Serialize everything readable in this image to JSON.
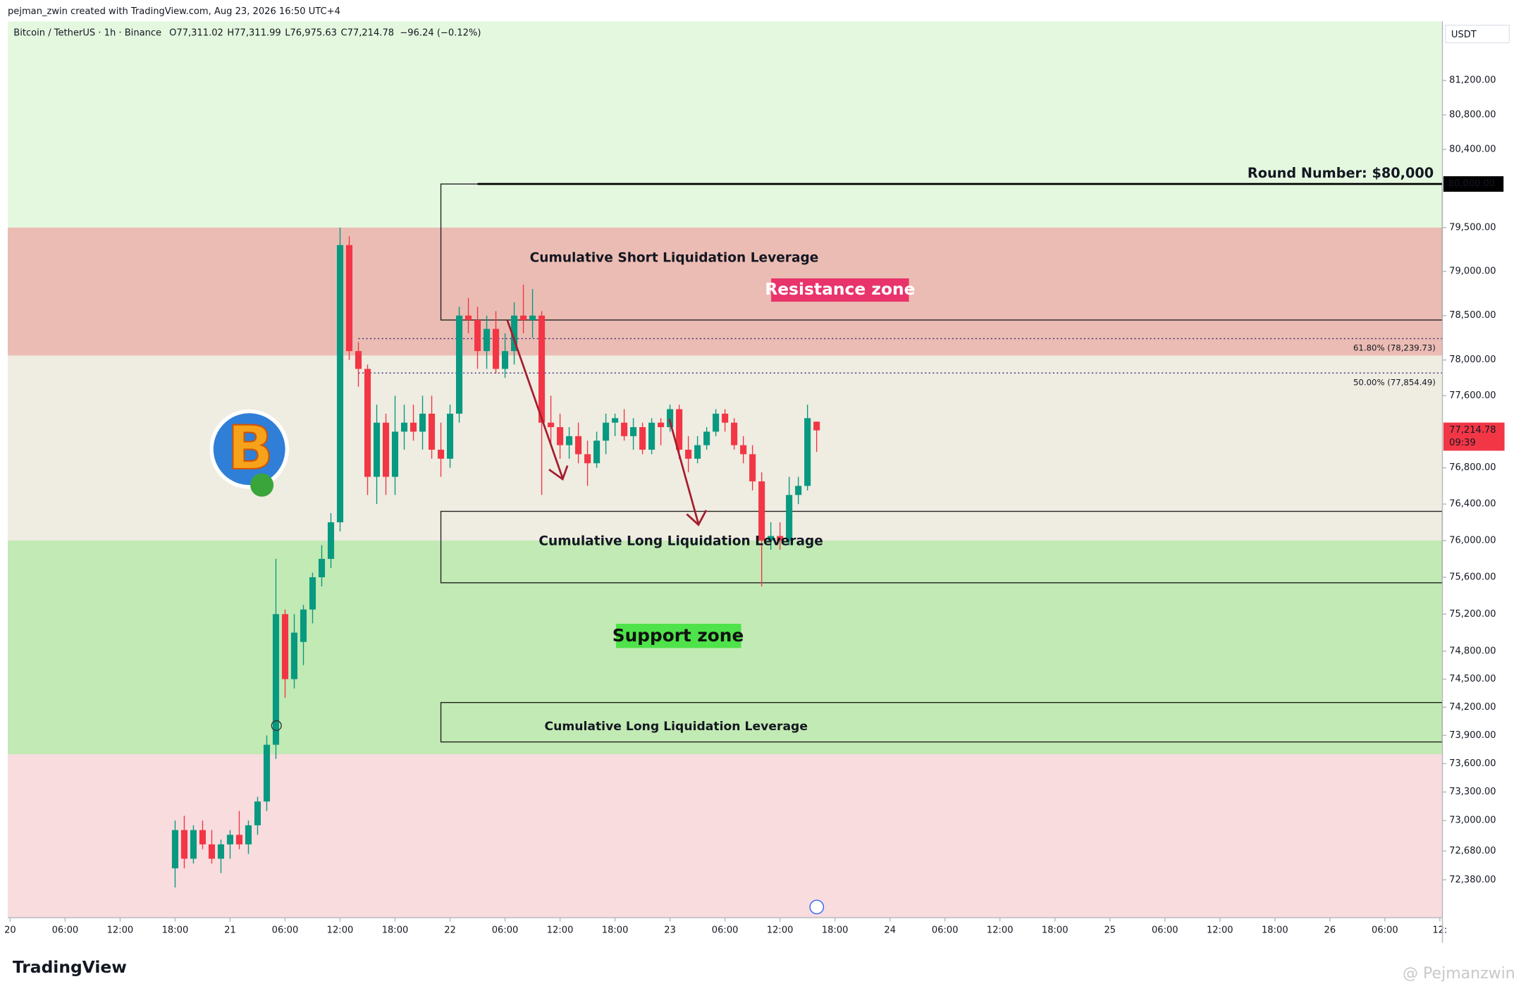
{
  "header": {
    "credit": "pejman_zwin created with TradingView.com, Aug 23, 2026 16:50 UTC+4",
    "symbol": "Bitcoin / TetherUS · 1h · Binance",
    "ohlc": [
      {
        "key": "O",
        "value": "77,311.02"
      },
      {
        "key": "H",
        "value": "77,311.99"
      },
      {
        "key": "L",
        "value": "76,975.63"
      },
      {
        "key": "C",
        "value": "77,214.78"
      }
    ],
    "change": "−96.24 (−0.12%)"
  },
  "chart_data": {
    "type": "candlestick",
    "currency": "USDT",
    "log_scale": true,
    "grid": false,
    "ylim": [
      71987,
      81894
    ],
    "xlim": [
      -0.26,
      156.28
    ],
    "yticks": [
      {
        "value": 81200,
        "label": "81,200.00"
      },
      {
        "value": 80800,
        "label": "80,800.00"
      },
      {
        "value": 80400,
        "label": "80,400.00"
      },
      {
        "value": 79500,
        "label": "79,500.00"
      },
      {
        "value": 79000,
        "label": "79,000.00"
      },
      {
        "value": 78500,
        "label": "78,500.00"
      },
      {
        "value": 78000,
        "label": "78,000.00"
      },
      {
        "value": 77600,
        "label": "77,600.00"
      },
      {
        "value": 76800,
        "label": "76,800.00"
      },
      {
        "value": 76400,
        "label": "76,400.00"
      },
      {
        "value": 76000,
        "label": "76,000.00"
      },
      {
        "value": 75600,
        "label": "75,600.00"
      },
      {
        "value": 75200,
        "label": "75,200.00"
      },
      {
        "value": 74800,
        "label": "74,800.00"
      },
      {
        "value": 74500,
        "label": "74,500.00"
      },
      {
        "value": 74200,
        "label": "74,200.00"
      },
      {
        "value": 73900,
        "label": "73,900.00"
      },
      {
        "value": 73600,
        "label": "73,600.00"
      },
      {
        "value": 73300,
        "label": "73,300.00"
      },
      {
        "value": 73000,
        "label": "73,000.00"
      },
      {
        "value": 72680,
        "label": "72,680.00"
      },
      {
        "value": 72380,
        "label": "72,380.00"
      }
    ],
    "xticks": [
      {
        "value": 0,
        "label": "20"
      },
      {
        "value": 6,
        "label": "06:00"
      },
      {
        "value": 12,
        "label": "12:00"
      },
      {
        "value": 18,
        "label": "18:00"
      },
      {
        "value": 24,
        "label": "21"
      },
      {
        "value": 30,
        "label": "06:00"
      },
      {
        "value": 36,
        "label": "12:00"
      },
      {
        "value": 42,
        "label": "18:00"
      },
      {
        "value": 48,
        "label": "22"
      },
      {
        "value": 54,
        "label": "06:00"
      },
      {
        "value": 60,
        "label": "12:00"
      },
      {
        "value": 66,
        "label": "18:00"
      },
      {
        "value": 72,
        "label": "23"
      },
      {
        "value": 78,
        "label": "06:00"
      },
      {
        "value": 84,
        "label": "12:00"
      },
      {
        "value": 90,
        "label": "18:00"
      },
      {
        "value": 96,
        "label": "24"
      },
      {
        "value": 102,
        "label": "06:00"
      },
      {
        "value": 108,
        "label": "12:00"
      },
      {
        "value": 114,
        "label": "18:00"
      },
      {
        "value": 120,
        "label": "25"
      },
      {
        "value": 126,
        "label": "06:00"
      },
      {
        "value": 132,
        "label": "12:00"
      },
      {
        "value": 138,
        "label": "18:00"
      },
      {
        "value": 144,
        "label": "26"
      },
      {
        "value": 150,
        "label": "06:00"
      },
      {
        "value": 156,
        "label": "12:"
      }
    ],
    "up_color": "#089981",
    "down_color": "#f23645",
    "x": [
      18,
      19,
      20,
      21,
      22,
      23,
      24,
      25,
      26,
      27,
      28,
      29,
      30,
      31,
      32,
      33,
      34,
      35,
      36,
      37,
      38,
      39,
      40,
      41,
      42,
      43,
      44,
      45,
      46,
      47,
      48,
      49,
      50,
      51,
      52,
      53,
      54,
      55,
      56,
      57,
      58,
      59,
      60,
      61,
      62,
      63,
      64,
      65,
      66,
      67,
      68,
      69,
      70,
      71,
      72,
      73,
      74,
      75,
      76,
      77,
      78,
      79,
      80,
      81,
      82,
      83,
      84,
      85,
      86,
      87,
      88
    ],
    "open": [
      72500,
      72900,
      72600,
      72900,
      72750,
      72600,
      72750,
      72850,
      72750,
      72950,
      73200,
      73800,
      75200,
      74500,
      74900,
      75250,
      75600,
      75800,
      76200,
      79300,
      78100,
      77900,
      76700,
      77300,
      76700,
      77200,
      77300,
      77200,
      77400,
      77000,
      76900,
      77400,
      78500,
      78450,
      78100,
      78350,
      77900,
      78100,
      78500,
      78450,
      78500,
      77300,
      77250,
      77050,
      77150,
      76950,
      76850,
      77100,
      77300,
      77300,
      77150,
      77250,
      77000,
      77300,
      77250,
      77450,
      77000,
      76900,
      77050,
      77200,
      77400,
      77300,
      77050,
      76950,
      76650,
      76000,
      76050,
      76000,
      76500,
      76600,
      77311.02
    ],
    "high": [
      73000,
      73050,
      72950,
      73000,
      72900,
      72800,
      72900,
      73100,
      73000,
      73250,
      73900,
      75800,
      75250,
      75200,
      75300,
      75650,
      75950,
      76300,
      79500,
      79400,
      78200,
      77950,
      77500,
      77400,
      77600,
      77500,
      77500,
      77600,
      77600,
      77300,
      77500,
      78600,
      78700,
      78600,
      78500,
      78550,
      78300,
      78650,
      78850,
      78800,
      78550,
      77600,
      77400,
      77250,
      77300,
      77100,
      77200,
      77400,
      77400,
      77450,
      77350,
      77300,
      77350,
      77350,
      77500,
      77500,
      77150,
      77150,
      77250,
      77450,
      77450,
      77350,
      77150,
      77050,
      76750,
      76200,
      76200,
      76700,
      76700,
      77500,
      77311.99
    ],
    "low": [
      72300,
      72500,
      72550,
      72700,
      72550,
      72450,
      72600,
      72700,
      72650,
      72850,
      73100,
      73650,
      74300,
      74400,
      74650,
      75100,
      75500,
      75700,
      76100,
      78000,
      77700,
      76500,
      76400,
      76500,
      76500,
      77000,
      77100,
      77000,
      76900,
      76700,
      76800,
      77300,
      78300,
      77900,
      77900,
      77850,
      77800,
      77950,
      78300,
      78250,
      76500,
      77050,
      76900,
      76900,
      76850,
      76600,
      76800,
      76950,
      77150,
      77100,
      77000,
      76950,
      76950,
      77050,
      77200,
      76900,
      76750,
      76850,
      77000,
      77150,
      77200,
      77000,
      76850,
      76550,
      75500,
      75900,
      75900,
      75950,
      76400,
      76550,
      76975.63
    ],
    "close": [
      72900,
      72600,
      72900,
      72750,
      72600,
      72750,
      72850,
      72750,
      72950,
      73200,
      73800,
      75200,
      74500,
      75000,
      75250,
      75600,
      75800,
      76200,
      79300,
      78100,
      77900,
      76700,
      77300,
      76700,
      77200,
      77300,
      77200,
      77400,
      77000,
      76900,
      77400,
      78500,
      78450,
      78100,
      78350,
      77900,
      78100,
      78500,
      78450,
      78500,
      77300,
      77250,
      77050,
      77150,
      76950,
      76850,
      77100,
      77300,
      77350,
      77150,
      77250,
      77000,
      77300,
      77250,
      77450,
      77000,
      76900,
      77050,
      77200,
      77400,
      77300,
      77050,
      76950,
      76650,
      76000,
      76050,
      76000,
      76500,
      76600,
      77350,
      77214.78
    ],
    "bands": [
      {
        "lower": 79500,
        "color": "#e4f8df"
      },
      {
        "lower": 78050,
        "upper": 79500,
        "color": "#ebbcb3"
      },
      {
        "lower": 76000,
        "upper": 78050,
        "color": "#efece1"
      },
      {
        "lower": 73700,
        "upper": 76000,
        "color": "#c2eab4"
      },
      {
        "upper": 73700,
        "color": "#f8dcde"
      }
    ],
    "boxes": [
      {
        "label": "Cumulative Short Liquidation Leverage",
        "start": 47,
        "top": 80000,
        "bottom": 78450
      },
      {
        "label": "Cumulative Long Liquidation Leverage",
        "start": 47,
        "top": 76320,
        "bottom": 75540
      },
      {
        "label": "Cumulative Long Liquidation Leverage",
        "start": 47,
        "top": 74250,
        "bottom": 73830
      }
    ],
    "round_number": {
      "value": 80000,
      "start": 51,
      "label": "Round Number: $80,000",
      "tag": "80,000.00"
    },
    "fib": [
      {
        "value": 78239.73,
        "label": "61.80% (78,239.73)"
      },
      {
        "value": 77854.49,
        "label": "50.00% (77,854.49)"
      }
    ],
    "fib_start": 38,
    "resistance_label": "Resistance zone",
    "support_label": "Support zone",
    "price_tag": {
      "value": 77214.78,
      "label": "77,214.78",
      "countdown": "09:39"
    }
  },
  "footer": {
    "brand": "TradingView",
    "watermark": "@ Pejmanzwin"
  }
}
